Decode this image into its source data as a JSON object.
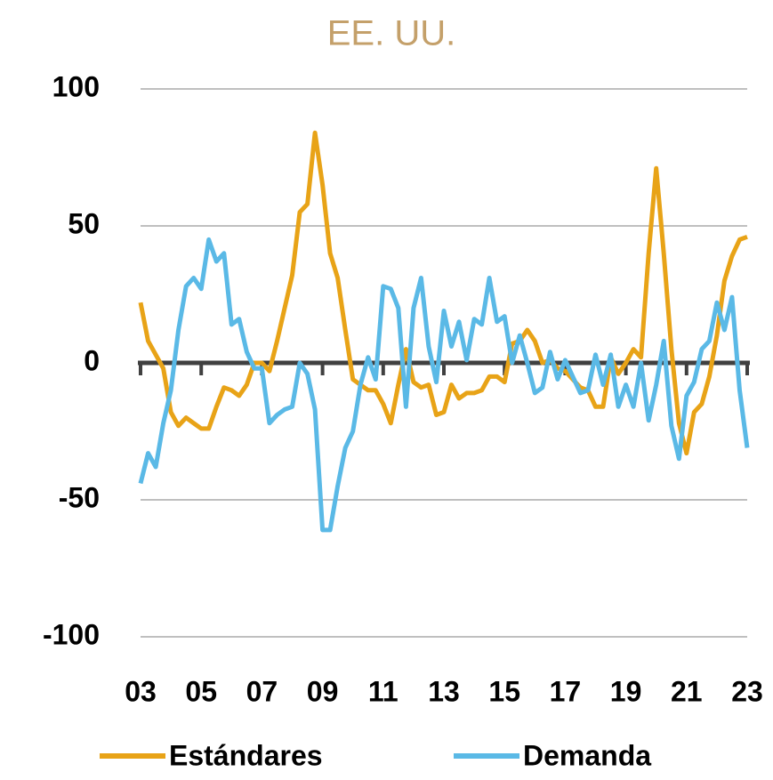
{
  "chart_data": {
    "type": "line",
    "title": "EE. UU.",
    "x": [
      3,
      3.25,
      3.5,
      3.75,
      4,
      4.25,
      4.5,
      4.75,
      5,
      5.25,
      5.5,
      5.75,
      6,
      6.25,
      6.5,
      6.75,
      7,
      7.25,
      7.5,
      7.75,
      8,
      8.25,
      8.5,
      8.75,
      9,
      9.25,
      9.5,
      9.75,
      10,
      10.25,
      10.5,
      10.75,
      11,
      11.25,
      11.5,
      11.75,
      12,
      12.25,
      12.5,
      12.75,
      13,
      13.25,
      13.5,
      13.75,
      14,
      14.25,
      14.5,
      14.75,
      15,
      15.25,
      15.5,
      15.75,
      16,
      16.25,
      16.5,
      16.75,
      17,
      17.25,
      17.5,
      17.75,
      18,
      18.25,
      18.5,
      18.75,
      19,
      19.25,
      19.5,
      19.75,
      20,
      20.25,
      20.5,
      20.75,
      21,
      21.25,
      21.5,
      21.75,
      22,
      22.25,
      22.5,
      22.75,
      23
    ],
    "series": [
      {
        "name": "Estándares",
        "color": "#e8a317",
        "values": [
          22,
          8,
          3,
          -2,
          -18,
          -23,
          -20,
          -22,
          -24,
          -24,
          -16,
          -9,
          -10,
          -12,
          -8,
          0,
          0,
          -3,
          8,
          20,
          32,
          55,
          58,
          84,
          65,
          40,
          31,
          12,
          -6,
          -8,
          -10,
          -10,
          -15,
          -22,
          -8,
          5,
          -7,
          -9,
          -8,
          -19,
          -18,
          -8,
          -13,
          -11,
          -11,
          -10,
          -5,
          -5,
          -7,
          7,
          8,
          12,
          8,
          0,
          1,
          -2,
          -3,
          -6,
          -9,
          -10,
          -16,
          -16,
          2,
          -4,
          0,
          5,
          2,
          40,
          71,
          40,
          5,
          -22,
          -33,
          -18,
          -15,
          -5,
          10,
          30,
          39,
          45,
          46
        ]
      },
      {
        "name": "Demanda",
        "color": "#5ab9e6",
        "values": [
          -44,
          -33,
          -38,
          -22,
          -10,
          12,
          28,
          31,
          27,
          45,
          37,
          40,
          14,
          16,
          4,
          -2,
          -2,
          -22,
          -19,
          -17,
          -16,
          0,
          -4,
          -17,
          -61,
          -61,
          -45,
          -31,
          -25,
          -8,
          2,
          -6,
          28,
          27,
          20,
          -16,
          20,
          31,
          6,
          -7,
          19,
          6,
          15,
          1,
          16,
          14,
          31,
          15,
          17,
          0,
          10,
          0,
          -11,
          -9,
          4,
          -6,
          1,
          -5,
          -11,
          -10,
          3,
          -8,
          3,
          -16,
          -8,
          -16,
          0,
          -21,
          -8,
          8,
          -23,
          -35,
          -12,
          -7,
          5,
          8,
          22,
          12,
          24,
          -10,
          -31
        ]
      }
    ],
    "xlim": [
      3,
      23
    ],
    "xticks": [
      {
        "value": 3,
        "label": "03"
      },
      {
        "value": 5,
        "label": "05"
      },
      {
        "value": 7,
        "label": "07"
      },
      {
        "value": 9,
        "label": "09"
      },
      {
        "value": 11,
        "label": "11"
      },
      {
        "value": 13,
        "label": "13"
      },
      {
        "value": 15,
        "label": "15"
      },
      {
        "value": 17,
        "label": "17"
      },
      {
        "value": 19,
        "label": "19"
      },
      {
        "value": 21,
        "label": "21"
      },
      {
        "value": 23,
        "label": "23"
      }
    ],
    "ylim": [
      -100,
      100
    ],
    "yticks": [
      -100,
      -50,
      0,
      50,
      100
    ],
    "grid": true
  }
}
